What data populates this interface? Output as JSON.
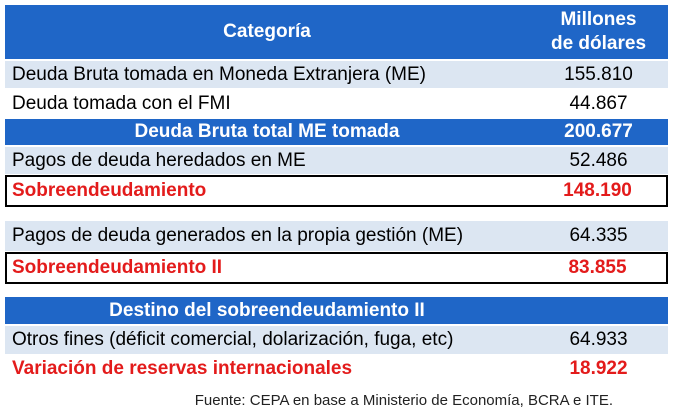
{
  "header": {
    "category": "Categoría",
    "unit_line1": "Millones",
    "unit_line2": "de dólares"
  },
  "rows": [
    {
      "label": "Deuda Bruta tomada en Moneda Extranjera (ME)",
      "value": "155.810"
    },
    {
      "label": "Deuda tomada con el FMI",
      "value": "44.867"
    },
    {
      "label": "Deuda Bruta total ME tomada",
      "value": "200.677"
    },
    {
      "label": "Pagos de deuda heredados en ME",
      "value": "52.486"
    },
    {
      "label": "Sobreendeudamiento",
      "value": "148.190"
    },
    {
      "label": "Pagos de deuda generados en la propia gestión (ME)",
      "value": "64.335"
    },
    {
      "label": "Sobreendeudamiento II",
      "value": "83.855"
    },
    {
      "label": "Destino del sobreendeudamiento II",
      "value": ""
    },
    {
      "label": "Otros fines (déficit comercial, dolarización, fuga, etc)",
      "value": "64.933"
    },
    {
      "label": "Variación de reservas internacionales",
      "value": "18.922"
    }
  ],
  "source": "Fuente: CEPA en base a Ministerio de Economía, BCRA e ITE.",
  "colors": {
    "header_blue": "#1f66c7",
    "light_row": "#dce6f2",
    "highlight_red": "#e31b1b"
  }
}
